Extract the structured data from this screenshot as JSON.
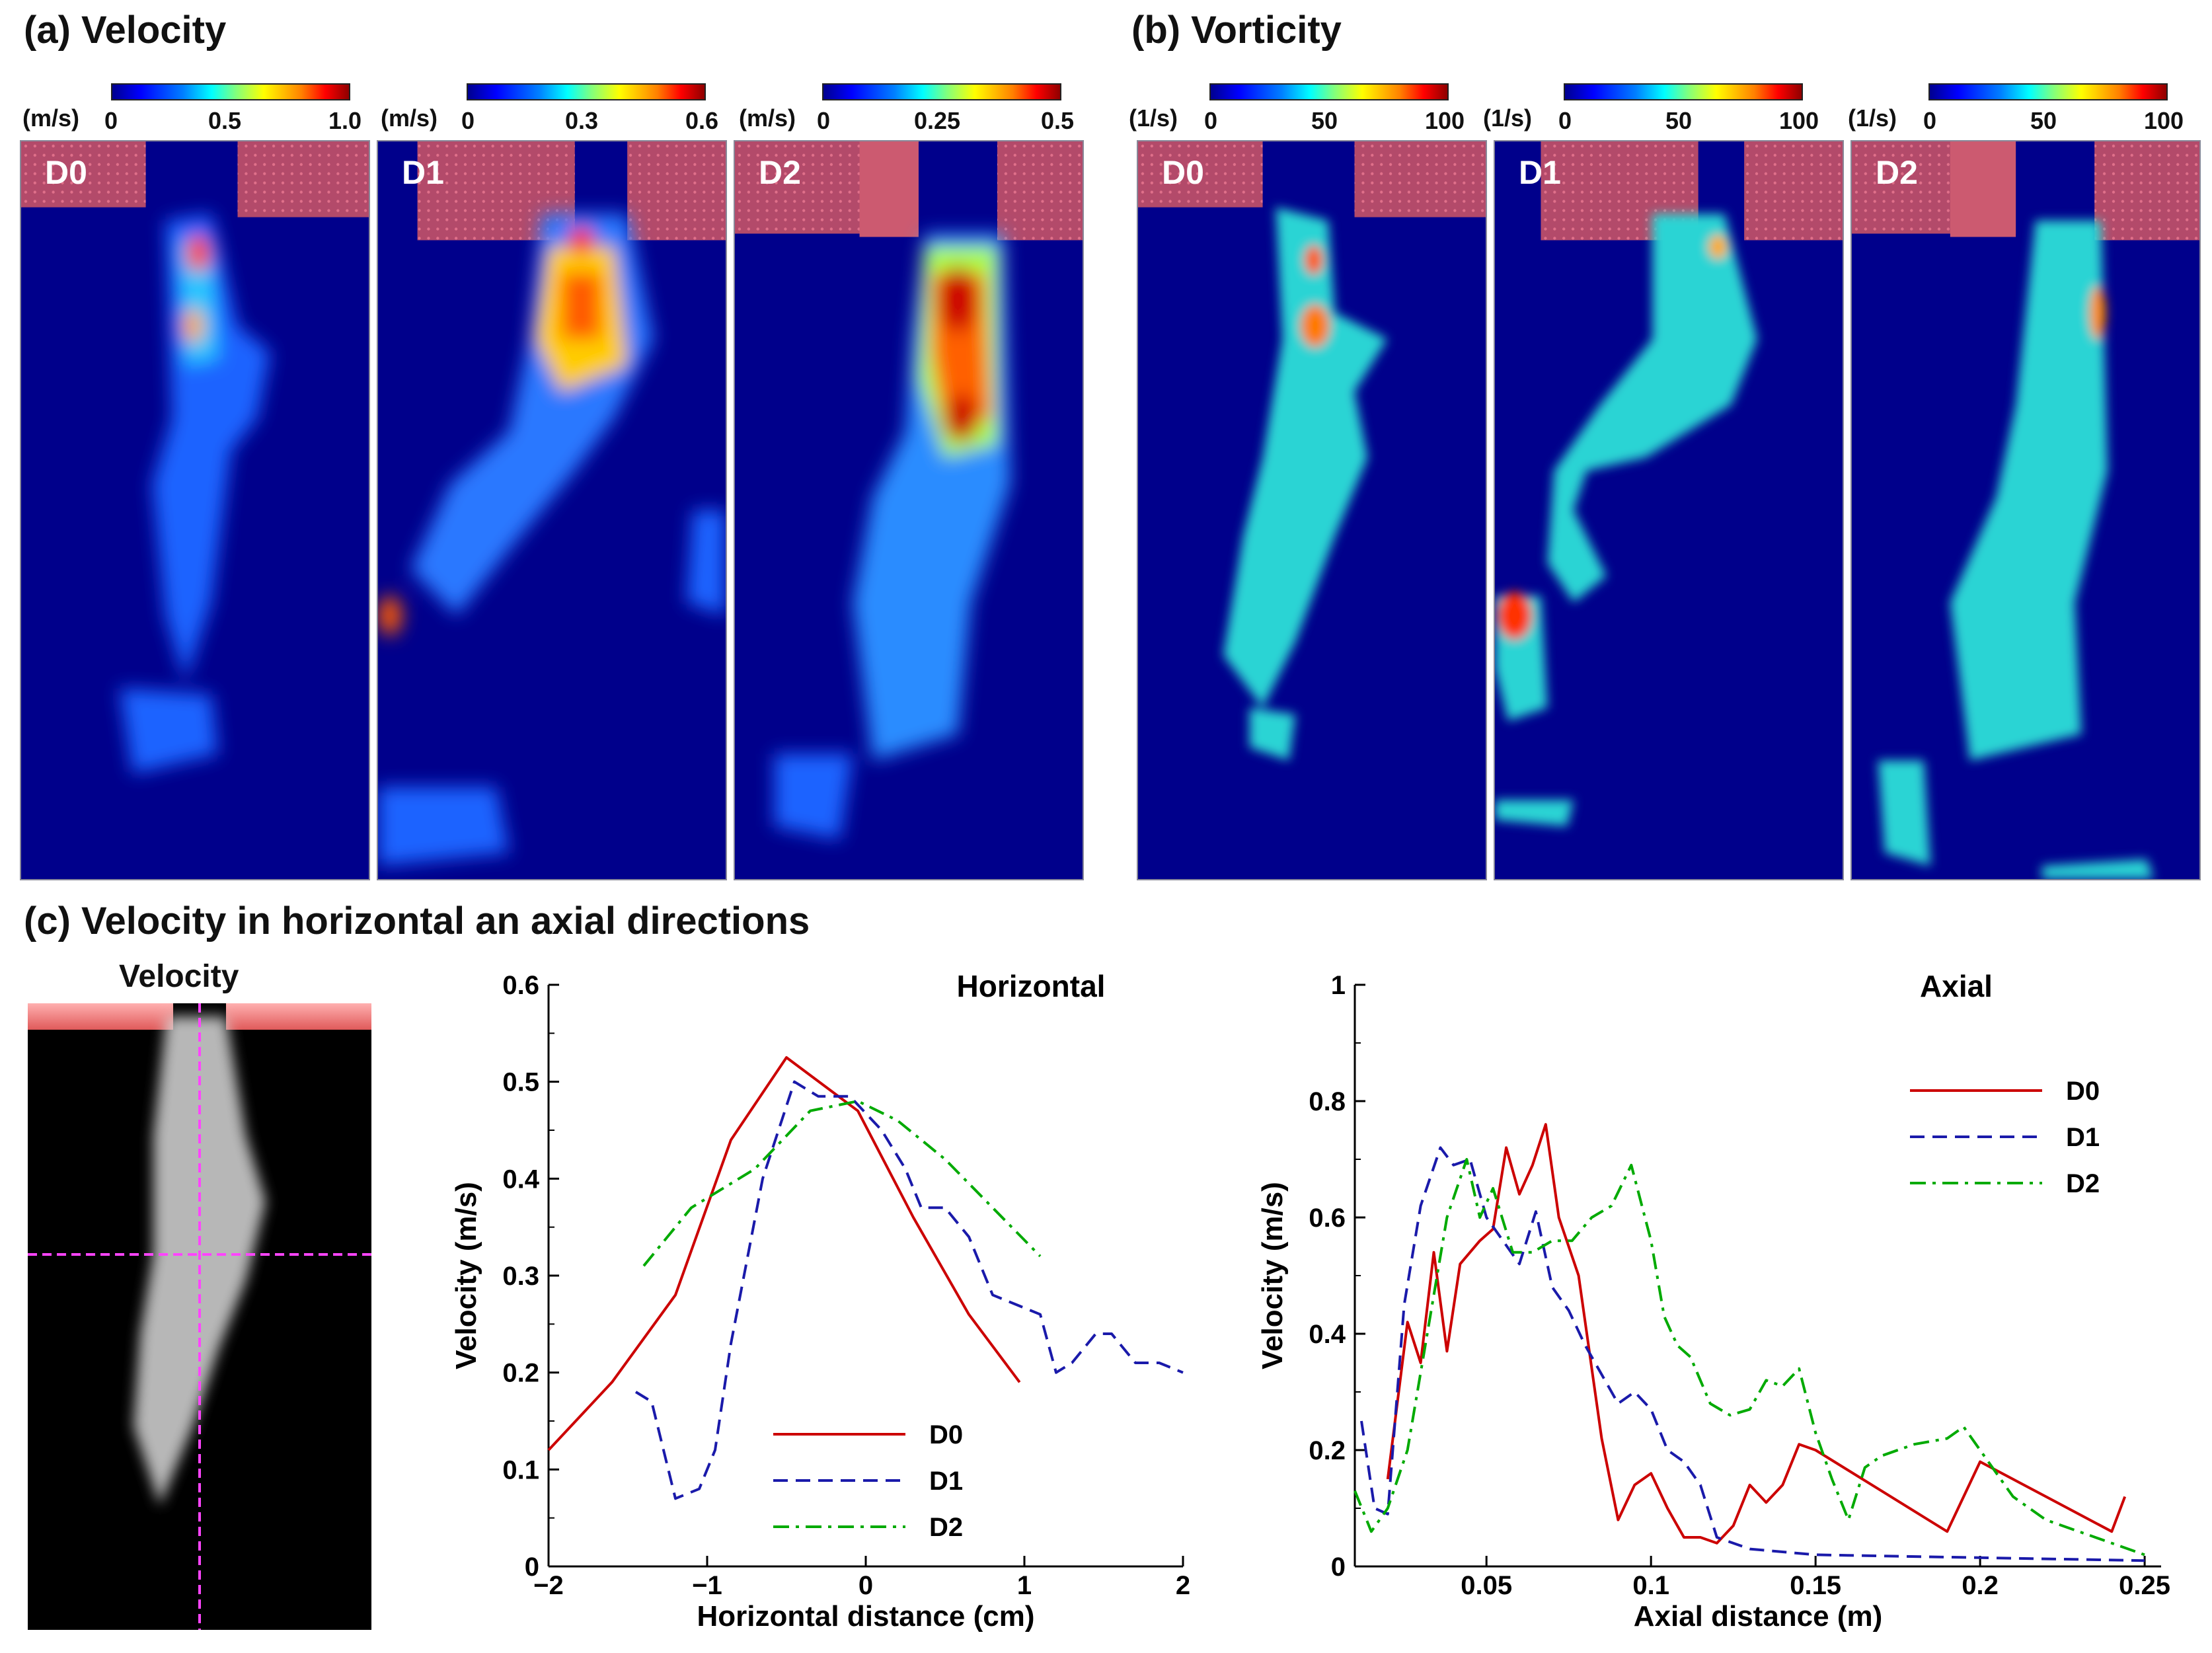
{
  "panels": {
    "a_title": "(a) Velocity",
    "b_title": "(b) Vorticity",
    "c_title": "(c) Velocity in horizontal an axial directions"
  },
  "velocity_maps": [
    {
      "label": "D0",
      "unit": "(m/s)",
      "ticks": [
        "0",
        "0.5",
        "1.0"
      ]
    },
    {
      "label": "D1",
      "unit": "(m/s)",
      "ticks": [
        "0",
        "0.3",
        "0.6"
      ]
    },
    {
      "label": "D2",
      "unit": "(m/s)",
      "ticks": [
        "0",
        "0.25",
        "0.5"
      ]
    }
  ],
  "vorticity_maps": [
    {
      "label": "D0",
      "unit": "(1/s)",
      "ticks": [
        "0",
        "50",
        "100"
      ]
    },
    {
      "label": "D1",
      "unit": "(1/s)",
      "ticks": [
        "0",
        "50",
        "100"
      ]
    },
    {
      "label": "D2",
      "unit": "(1/s)",
      "ticks": [
        "0",
        "50",
        "100"
      ]
    }
  ],
  "photo_title": "Velocity",
  "colors": {
    "D0": "#cc0000",
    "D1": "#1a1aaa",
    "D2": "#00aa00",
    "field_bg": "#00008b",
    "nozzle": "#b34a6a"
  },
  "chart_data": [
    {
      "type": "line",
      "title": "Horizontal",
      "xlabel": "Horizontal distance (cm)",
      "ylabel": "Velocity (m/s)",
      "xlim": [
        -2,
        2
      ],
      "ylim": [
        0,
        0.6
      ],
      "xticks": [
        "-2",
        "-1",
        "0",
        "1",
        "2"
      ],
      "yticks": [
        "0",
        "0.1",
        "0.2",
        "0.3",
        "0.4",
        "0.5",
        "0.6"
      ],
      "legend_position": "bottom-center",
      "series": [
        {
          "name": "D0",
          "style": "solid",
          "x": [
            -2.0,
            -1.6,
            -1.2,
            -0.85,
            -0.5,
            -0.05,
            0.3,
            0.65,
            0.97
          ],
          "y": [
            0.12,
            0.19,
            0.28,
            0.44,
            0.525,
            0.47,
            0.36,
            0.26,
            0.19
          ]
        },
        {
          "name": "D1",
          "style": "dashed",
          "x": [
            -1.45,
            -1.35,
            -1.2,
            -1.05,
            -0.95,
            -0.85,
            -0.65,
            -0.45,
            -0.3,
            -0.1,
            0.1,
            0.25,
            0.35,
            0.5,
            0.65,
            0.8,
            0.95,
            1.1,
            1.2,
            1.3,
            1.45,
            1.55,
            1.7,
            1.85,
            2.0
          ],
          "y": [
            0.18,
            0.17,
            0.07,
            0.08,
            0.12,
            0.23,
            0.4,
            0.5,
            0.485,
            0.485,
            0.45,
            0.41,
            0.37,
            0.37,
            0.34,
            0.28,
            0.27,
            0.26,
            0.2,
            0.21,
            0.24,
            0.24,
            0.21,
            0.21,
            0.2
          ]
        },
        {
          "name": "D2",
          "style": "dashdot",
          "x": [
            -1.4,
            -1.1,
            -0.7,
            -0.35,
            -0.05,
            0.2,
            0.5,
            0.8,
            1.1
          ],
          "y": [
            0.31,
            0.37,
            0.41,
            0.47,
            0.48,
            0.46,
            0.42,
            0.37,
            0.32
          ]
        }
      ]
    },
    {
      "type": "line",
      "title": "Axial",
      "xlabel": "Axial distance (m)",
      "ylabel": "Velocity (m/s)",
      "xlim": [
        0.01,
        0.255
      ],
      "ylim": [
        0,
        1
      ],
      "xticks": [
        "0.05",
        "0.1",
        "0.15",
        "0.2",
        "0.25"
      ],
      "yticks": [
        "0",
        "0.2",
        "0.4",
        "0.6",
        "0.8",
        "1"
      ],
      "legend_position": "top-right",
      "series": [
        {
          "name": "D0",
          "style": "solid",
          "x": [
            0.02,
            0.026,
            0.03,
            0.034,
            0.038,
            0.042,
            0.048,
            0.052,
            0.056,
            0.06,
            0.064,
            0.068,
            0.072,
            0.078,
            0.085,
            0.09,
            0.095,
            0.1,
            0.105,
            0.11,
            0.115,
            0.12,
            0.125,
            0.13,
            0.135,
            0.14,
            0.145,
            0.15,
            0.17,
            0.19,
            0.2,
            0.22,
            0.24,
            0.244
          ],
          "y": [
            0.15,
            0.42,
            0.35,
            0.54,
            0.37,
            0.52,
            0.56,
            0.58,
            0.72,
            0.64,
            0.69,
            0.76,
            0.6,
            0.5,
            0.22,
            0.08,
            0.14,
            0.16,
            0.1,
            0.05,
            0.05,
            0.04,
            0.07,
            0.14,
            0.11,
            0.14,
            0.21,
            0.2,
            0.13,
            0.06,
            0.18,
            0.12,
            0.06,
            0.12
          ]
        },
        {
          "name": "D1",
          "style": "dashed",
          "x": [
            0.012,
            0.016,
            0.02,
            0.025,
            0.03,
            0.036,
            0.04,
            0.045,
            0.05,
            0.055,
            0.06,
            0.065,
            0.07,
            0.075,
            0.08,
            0.085,
            0.09,
            0.095,
            0.1,
            0.105,
            0.11,
            0.115,
            0.12,
            0.13,
            0.15,
            0.2,
            0.25
          ],
          "y": [
            0.25,
            0.1,
            0.09,
            0.45,
            0.62,
            0.72,
            0.69,
            0.7,
            0.6,
            0.56,
            0.52,
            0.61,
            0.48,
            0.44,
            0.38,
            0.33,
            0.28,
            0.3,
            0.27,
            0.2,
            0.18,
            0.14,
            0.05,
            0.03,
            0.02,
            0.015,
            0.01
          ]
        },
        {
          "name": "D2",
          "style": "dashdot",
          "x": [
            0.01,
            0.015,
            0.02,
            0.026,
            0.032,
            0.038,
            0.044,
            0.048,
            0.052,
            0.058,
            0.064,
            0.07,
            0.076,
            0.082,
            0.088,
            0.094,
            0.1,
            0.104,
            0.108,
            0.112,
            0.118,
            0.124,
            0.13,
            0.135,
            0.14,
            0.145,
            0.15,
            0.155,
            0.16,
            0.165,
            0.17,
            0.18,
            0.19,
            0.195,
            0.2,
            0.21,
            0.22,
            0.235,
            0.25
          ],
          "y": [
            0.13,
            0.06,
            0.1,
            0.2,
            0.4,
            0.6,
            0.7,
            0.6,
            0.65,
            0.54,
            0.54,
            0.56,
            0.56,
            0.6,
            0.62,
            0.69,
            0.56,
            0.43,
            0.38,
            0.36,
            0.28,
            0.26,
            0.27,
            0.32,
            0.31,
            0.34,
            0.23,
            0.15,
            0.08,
            0.17,
            0.19,
            0.21,
            0.22,
            0.24,
            0.2,
            0.12,
            0.08,
            0.05,
            0.02
          ]
        }
      ]
    }
  ]
}
